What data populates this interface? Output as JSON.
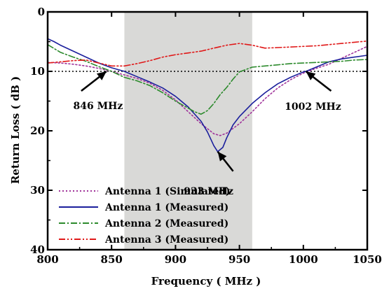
{
  "chart_data": {
    "type": "line",
    "title": "",
    "xlabel": "Frequency ( MHz )",
    "ylabel": "Return Loss ( dB )",
    "xlim": [
      800,
      1050
    ],
    "ylim": [
      0,
      40
    ],
    "y_inverted": true,
    "x_ticks": [
      800,
      850,
      900,
      950,
      1000,
      1050
    ],
    "y_ticks": [
      0,
      10,
      20,
      30,
      40
    ],
    "x_tick_labels": [
      "800",
      "850",
      "900",
      "950",
      "1000",
      "1050"
    ],
    "y_tick_labels": [
      "0",
      "10",
      "20",
      "30",
      "40"
    ],
    "grid": false,
    "legend_position": "bottom-left",
    "shaded_band": {
      "x_from": 860,
      "x_to": 960,
      "color": "#d9d9d7"
    },
    "reference_line": {
      "y": 10,
      "color": "#000000",
      "style": "dotted"
    },
    "annotations": [
      {
        "text": "846 MHz",
        "point": [
          846,
          10
        ]
      },
      {
        "text": "933 MHz",
        "point": [
          933,
          23.5
        ]
      },
      {
        "text": "1002 MHz",
        "point": [
          1002,
          10
        ]
      }
    ],
    "series": [
      {
        "name": "Antenna 1 (Simulated)",
        "color": "#a0339a",
        "style": "dotted",
        "x": [
          800,
          810,
          820,
          830,
          840,
          850,
          860,
          870,
          880,
          890,
          900,
          910,
          920,
          930,
          935,
          940,
          950,
          960,
          970,
          980,
          990,
          1000,
          1010,
          1020,
          1030,
          1040,
          1050
        ],
        "y": [
          8.5,
          8.6,
          8.8,
          9.1,
          9.5,
          10.0,
          10.6,
          11.2,
          12.0,
          13.2,
          14.8,
          16.8,
          18.8,
          20.5,
          20.8,
          20.4,
          18.8,
          16.8,
          14.6,
          12.8,
          11.4,
          10.3,
          9.5,
          8.8,
          7.8,
          6.8,
          5.8
        ]
      },
      {
        "name": "Antenna 1 (Measured)",
        "color": "#1b1f9c",
        "style": "solid",
        "x": [
          800,
          805,
          810,
          820,
          830,
          840,
          850,
          860,
          870,
          880,
          890,
          900,
          910,
          920,
          925,
          930,
          933,
          937,
          940,
          945,
          950,
          960,
          970,
          980,
          990,
          1000,
          1002,
          1010,
          1020,
          1030,
          1040,
          1050
        ],
        "y": [
          4.5,
          5.0,
          5.6,
          6.6,
          7.6,
          8.6,
          9.4,
          10.0,
          10.9,
          11.8,
          12.8,
          14.2,
          16.0,
          18.4,
          20.2,
          22.5,
          23.5,
          22.8,
          21.2,
          19.0,
          17.6,
          15.4,
          13.6,
          12.1,
          11.0,
          10.1,
          10.0,
          9.3,
          8.4,
          7.9,
          7.6,
          7.3
        ]
      },
      {
        "name": "Antenna 2 (Measured)",
        "color": "#2c8a2c",
        "style": "dashdot",
        "x": [
          800,
          810,
          820,
          830,
          840,
          850,
          860,
          870,
          880,
          890,
          900,
          910,
          915,
          920,
          925,
          930,
          935,
          940,
          945,
          950,
          960,
          970,
          980,
          990,
          1000,
          1010,
          1020,
          1030,
          1040,
          1050
        ],
        "y": [
          5.5,
          6.8,
          7.6,
          8.3,
          9.2,
          10.0,
          11.0,
          11.6,
          12.4,
          13.6,
          15.0,
          16.2,
          16.8,
          17.2,
          16.6,
          15.4,
          13.9,
          12.7,
          11.3,
          10.1,
          9.3,
          9.1,
          8.9,
          8.7,
          8.6,
          8.5,
          8.4,
          8.3,
          8.1,
          8.0
        ]
      },
      {
        "name": "Antenna 3 (Measured)",
        "color": "#e01818",
        "style": "dashdotdot",
        "x": [
          800,
          810,
          820,
          830,
          840,
          850,
          860,
          870,
          880,
          890,
          900,
          910,
          920,
          930,
          940,
          950,
          960,
          970,
          980,
          990,
          1000,
          1010,
          1020,
          1030,
          1040,
          1050
        ],
        "y": [
          8.6,
          8.4,
          8.2,
          8.1,
          8.6,
          9.1,
          9.1,
          8.7,
          8.2,
          7.6,
          7.2,
          6.9,
          6.6,
          6.1,
          5.6,
          5.3,
          5.6,
          6.1,
          6.0,
          5.9,
          5.8,
          5.7,
          5.5,
          5.3,
          5.1,
          4.9
        ]
      }
    ]
  }
}
